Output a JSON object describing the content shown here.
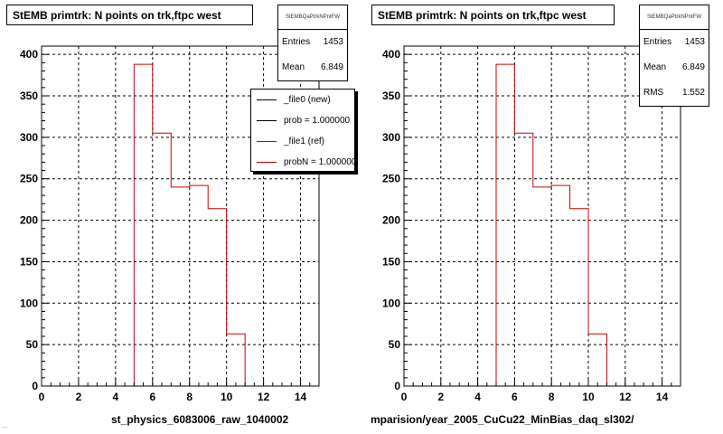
{
  "panels": [
    {
      "title": "StEMB primtrk: N points on trk,ftpc west",
      "stats_name": "StEMBQaPtrkNPntFW",
      "stats": [
        {
          "label": "Entries",
          "value": "1453"
        },
        {
          "label": "Mean",
          "value": "6.849"
        }
      ],
      "legend": [
        {
          "label": "_file0 (new)",
          "color": "#000000"
        },
        {
          "label": "prob = 1.000000",
          "color": "#000000"
        },
        {
          "label": "_file1 (ref)",
          "color": "#cc0000"
        },
        {
          "label": "probN = 1.000000",
          "color": "#cc0000"
        }
      ],
      "xtitle": "st_physics_6083006_raw_1040002"
    },
    {
      "title": "StEMB primtrk: N points on trk,ftpc west",
      "stats_name": "StEMBQaPtrkNPntFW",
      "stats": [
        {
          "label": "Entries",
          "value": "1453"
        },
        {
          "label": "Mean",
          "value": "6.849"
        },
        {
          "label": "RMS",
          "value": "1.552"
        }
      ],
      "xtitle": "mparision/year_2005_CuCu22_MinBias_daq_sl302/"
    }
  ],
  "footer_text": "…",
  "chart_data": [
    {
      "type": "bar",
      "title": "StEMB primtrk: N points on trk,ftpc west",
      "xlabel": "st_physics_6083006_raw_1040002",
      "ylabel": "",
      "xlim": [
        0,
        15
      ],
      "ylim": [
        0,
        410
      ],
      "xticks": [
        0,
        2,
        4,
        6,
        8,
        10,
        12,
        14
      ],
      "yticks": [
        0,
        50,
        100,
        150,
        200,
        250,
        300,
        350,
        400
      ],
      "grid": true,
      "legend_position": "top-right",
      "bin_edges": [
        0,
        1,
        2,
        3,
        4,
        5,
        6,
        7,
        8,
        9,
        10,
        11,
        12,
        13,
        14,
        15
      ],
      "series": [
        {
          "name": "_file1 (ref)",
          "color": "#cc0000",
          "values": [
            0,
            0,
            0,
            0,
            0,
            388,
            305,
            240,
            242,
            214,
            63,
            0,
            0,
            0,
            0
          ]
        }
      ]
    },
    {
      "type": "bar",
      "title": "StEMB primtrk: N points on trk,ftpc west",
      "xlabel": "mparision/year_2005_CuCu22_MinBias_daq_sl302/",
      "ylabel": "",
      "xlim": [
        0,
        15
      ],
      "ylim": [
        0,
        410
      ],
      "xticks": [
        0,
        2,
        4,
        6,
        8,
        10,
        12,
        14
      ],
      "yticks": [
        0,
        50,
        100,
        150,
        200,
        250,
        300,
        350,
        400
      ],
      "grid": true,
      "bin_edges": [
        0,
        1,
        2,
        3,
        4,
        5,
        6,
        7,
        8,
        9,
        10,
        11,
        12,
        13,
        14,
        15
      ],
      "series": [
        {
          "color": "#cc0000",
          "values": [
            0,
            0,
            0,
            0,
            0,
            388,
            305,
            240,
            242,
            214,
            63,
            0,
            0,
            0,
            0
          ]
        }
      ]
    }
  ]
}
